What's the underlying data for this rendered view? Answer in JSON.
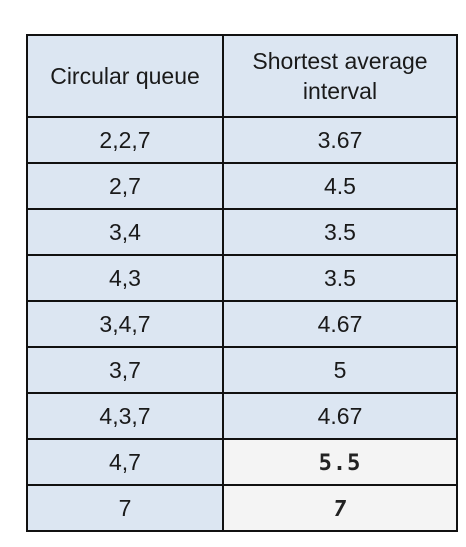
{
  "table": {
    "headers": {
      "col1": "Circular queue",
      "col2_line1": "Shortest average",
      "col2_line2": "interval"
    },
    "rows": [
      {
        "queue": "2,2,7",
        "interval": "3.67"
      },
      {
        "queue": "2,7",
        "interval": "4.5"
      },
      {
        "queue": "3,4",
        "interval": "3.5"
      },
      {
        "queue": "4,3",
        "interval": "3.5"
      },
      {
        "queue": "3,4,7",
        "interval": "4.67"
      },
      {
        "queue": "3,7",
        "interval": "5"
      },
      {
        "queue": "4,3,7",
        "interval": "4.67"
      },
      {
        "queue": "4,7",
        "interval": "5.5"
      },
      {
        "queue": "7",
        "interval": "7"
      }
    ]
  },
  "colors": {
    "cell_background": "#dce6f2",
    "border": "#111111",
    "handwritten_cell_background": "#f4f4f4"
  }
}
